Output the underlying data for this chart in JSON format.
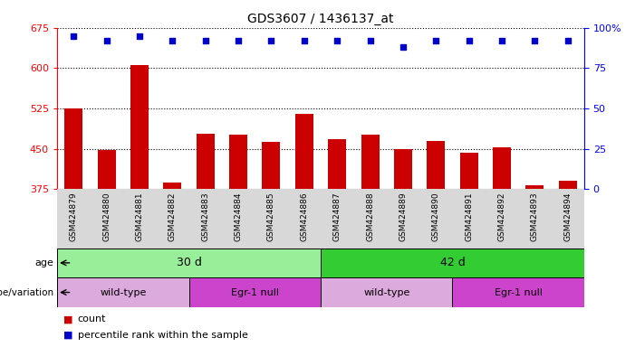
{
  "title": "GDS3607 / 1436137_at",
  "samples": [
    "GSM424879",
    "GSM424880",
    "GSM424881",
    "GSM424882",
    "GSM424883",
    "GSM424884",
    "GSM424885",
    "GSM424886",
    "GSM424887",
    "GSM424888",
    "GSM424889",
    "GSM424890",
    "GSM424891",
    "GSM424892",
    "GSM424893",
    "GSM424894"
  ],
  "counts": [
    525,
    447,
    605,
    388,
    478,
    477,
    462,
    515,
    468,
    477,
    450,
    465,
    443,
    452,
    382,
    390
  ],
  "percentile_ranks": [
    95,
    92,
    95,
    92,
    92,
    92,
    92,
    92,
    92,
    92,
    88,
    92,
    92,
    92,
    92,
    92
  ],
  "ylim_left": [
    375,
    675
  ],
  "ylim_right": [
    0,
    100
  ],
  "yticks_left": [
    375,
    450,
    525,
    600,
    675
  ],
  "yticks_right": [
    0,
    25,
    50,
    75,
    100
  ],
  "bar_color": "#cc0000",
  "dot_color": "#0000cc",
  "age_row": [
    {
      "label": "30 d",
      "start": 0,
      "end": 8,
      "color": "#99ee99"
    },
    {
      "label": "42 d",
      "start": 8,
      "end": 16,
      "color": "#33cc33"
    }
  ],
  "genotype_row": [
    {
      "label": "wild-type",
      "start": 0,
      "end": 4,
      "color": "#ddaadd"
    },
    {
      "label": "Egr-1 null",
      "start": 4,
      "end": 8,
      "color": "#cc44cc"
    },
    {
      "label": "wild-type",
      "start": 8,
      "end": 12,
      "color": "#ddaadd"
    },
    {
      "label": "Egr-1 null",
      "start": 12,
      "end": 16,
      "color": "#cc44cc"
    }
  ],
  "legend_count_label": "count",
  "legend_percentile_label": "percentile rank within the sample",
  "age_label": "age",
  "genotype_label": "genotype/variation",
  "plot_bg": "#ffffff",
  "xtick_bg": "#d8d8d8"
}
